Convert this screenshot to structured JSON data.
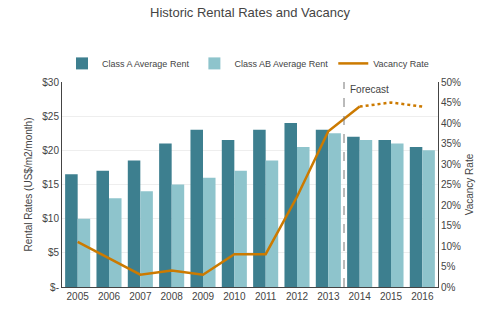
{
  "chart_data": {
    "type": "bar",
    "title": "Historic Rental Rates and Vacancy",
    "categories": [
      "2005",
      "2006",
      "2007",
      "2008",
      "2009",
      "2010",
      "2011",
      "2012",
      "2013",
      "2014",
      "2015",
      "2016"
    ],
    "series": [
      {
        "name": "Class A Average Rent",
        "color": "#3d7f8f",
        "values": [
          16.5,
          17.0,
          18.5,
          21.0,
          23.0,
          21.5,
          23.0,
          24.0,
          23.0,
          22.0,
          21.5,
          20.5
        ]
      },
      {
        "name": "Class AB Average Rent",
        "color": "#8ec4cc",
        "values": [
          10.0,
          13.0,
          14.0,
          15.0,
          16.0,
          17.0,
          18.5,
          20.5,
          22.5,
          21.5,
          21.0,
          20.0
        ]
      },
      {
        "name": "Vacancy Rate",
        "type": "line",
        "axis": "y2",
        "color": "#cc7a00",
        "line_style": "solid",
        "values": [
          0.11,
          0.07,
          0.03,
          0.04,
          0.03,
          0.08,
          0.08,
          0.22,
          0.38,
          0.44,
          null,
          null
        ]
      },
      {
        "type": "line",
        "axis": "y2",
        "color": "#cc7a00",
        "line_style": "dotted",
        "values": [
          null,
          null,
          null,
          null,
          null,
          null,
          null,
          null,
          null,
          0.44,
          0.45,
          0.44
        ]
      }
    ],
    "ylabel": "Rental Rates (US$/m2/month)",
    "y2label": "Vacancy Rate",
    "ylim": [
      0,
      30
    ],
    "yticks": [
      {
        "value": 0,
        "label": "$-"
      },
      {
        "value": 5,
        "label": "$5"
      },
      {
        "value": 10,
        "label": "$10"
      },
      {
        "value": 15,
        "label": "$15"
      },
      {
        "value": 20,
        "label": "$20"
      },
      {
        "value": 25,
        "label": "$25"
      },
      {
        "value": 30,
        "label": "$30"
      }
    ],
    "y2lim": [
      0,
      0.5
    ],
    "y2ticks": [
      {
        "value": 0.0,
        "label": "0%"
      },
      {
        "value": 0.05,
        "label": "5%"
      },
      {
        "value": 0.1,
        "label": "10%"
      },
      {
        "value": 0.15,
        "label": "15%"
      },
      {
        "value": 0.2,
        "label": "20%"
      },
      {
        "value": 0.25,
        "label": "25%"
      },
      {
        "value": 0.3,
        "label": "30%"
      },
      {
        "value": 0.35,
        "label": "35%"
      },
      {
        "value": 0.4,
        "label": "40%"
      },
      {
        "value": 0.45,
        "label": "45%"
      },
      {
        "value": 0.5,
        "label": "50%"
      }
    ],
    "grid": true,
    "legend": "upper left",
    "annotations": [
      {
        "text": "Forecast",
        "x": "2014"
      }
    ]
  }
}
